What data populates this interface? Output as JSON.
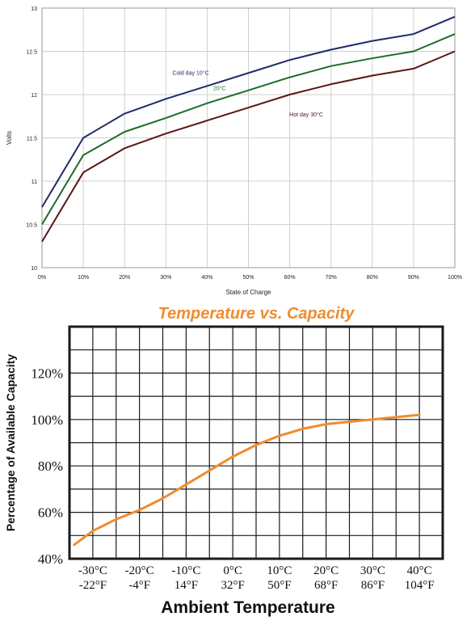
{
  "chart_data": [
    {
      "type": "line",
      "title": "",
      "xlabel": "State of Charge",
      "ylabel": "Volts",
      "x": [
        0,
        10,
        20,
        30,
        40,
        50,
        60,
        70,
        80,
        90,
        100
      ],
      "x_tick_labels": [
        "0%",
        "10%",
        "20%",
        "30%",
        "40%",
        "50%",
        "60%",
        "70%",
        "80%",
        "90%",
        "100%"
      ],
      "y_ticks": [
        10,
        10.5,
        11,
        11.5,
        12,
        12.5,
        13
      ],
      "y_tick_labels": [
        "10",
        "10.5",
        "11",
        "11.5",
        "12",
        "12.5",
        "13"
      ],
      "xlim": [
        0,
        100
      ],
      "ylim": [
        10,
        13
      ],
      "grid": true,
      "series": [
        {
          "name": "Cold day 10°C",
          "color": "#1f2a6b",
          "values": [
            10.7,
            11.5,
            11.78,
            11.95,
            12.1,
            12.25,
            12.4,
            12.52,
            12.62,
            12.7,
            12.9
          ]
        },
        {
          "name": "20°C",
          "color": "#1e6b2a",
          "values": [
            10.5,
            11.3,
            11.57,
            11.73,
            11.9,
            12.05,
            12.2,
            12.33,
            12.42,
            12.5,
            12.7
          ]
        },
        {
          "name": "Hot day 30°C",
          "color": "#5a1616",
          "values": [
            10.3,
            11.1,
            11.38,
            11.55,
            11.7,
            11.85,
            12.0,
            12.12,
            12.22,
            12.3,
            12.5
          ]
        }
      ],
      "annotations": [
        {
          "text": "Cold day 10°C",
          "x": 36,
          "y": 12.23
        },
        {
          "text": "20°C",
          "x": 43,
          "y": 12.05
        },
        {
          "text": "Hot day 30°C",
          "x": 64,
          "y": 11.75
        }
      ]
    },
    {
      "type": "line",
      "title": "Temperature vs. Capacity",
      "xlabel": "Ambient Temperature",
      "ylabel": "Percentage of Available Capacity",
      "x_tick_labels": [
        {
          "c": "-30°C",
          "f": "-22°F",
          "x": -30
        },
        {
          "c": "-20°C",
          "f": "-4°F",
          "x": -20
        },
        {
          "c": "-10°C",
          "f": "14°F",
          "x": -10
        },
        {
          "c": "0°C",
          "f": "32°F",
          "x": 0
        },
        {
          "c": "10°C",
          "f": "50°F",
          "x": 10
        },
        {
          "c": "20°C",
          "f": "68°F",
          "x": 20
        },
        {
          "c": "30°C",
          "f": "86°F",
          "x": 30
        },
        {
          "c": "40°C",
          "f": "104°F",
          "x": 40
        }
      ],
      "y_tick_labels": [
        {
          "label": "40%",
          "y": 40
        },
        {
          "label": "60%",
          "y": 60
        },
        {
          "label": "80%",
          "y": 80
        },
        {
          "label": "100%",
          "y": 100
        },
        {
          "label": "120%",
          "y": 120
        }
      ],
      "xlim": [
        -35,
        45
      ],
      "ylim": [
        40,
        140
      ],
      "grid": true,
      "series": [
        {
          "color": "#ef8c2e",
          "x": [
            -34,
            -30,
            -25,
            -20,
            -15,
            -10,
            -5,
            0,
            5,
            10,
            15,
            20,
            25,
            30,
            35,
            40
          ],
          "values": [
            46,
            52,
            57,
            61,
            66,
            72,
            78,
            84,
            89,
            93,
            96,
            98,
            99,
            100,
            101,
            102
          ]
        }
      ]
    }
  ]
}
